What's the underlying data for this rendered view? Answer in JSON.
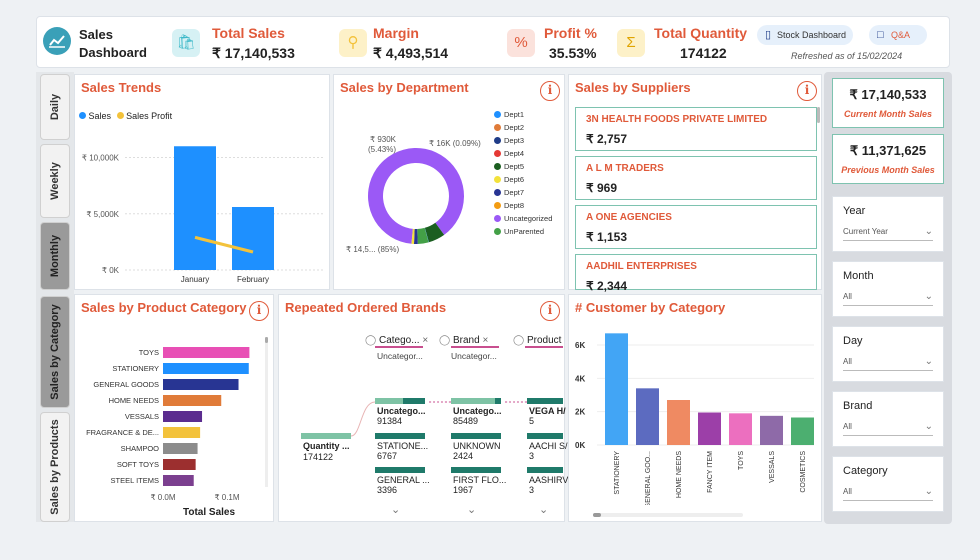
{
  "header": {
    "title_line1": "Sales",
    "title_line2": "Dashboard",
    "kpis": [
      {
        "label": "Total Sales",
        "value": "₹ 17,140,533",
        "icon": "shopping-bag-icon",
        "color": "#3cb8c8"
      },
      {
        "label": "Margin",
        "value": "₹ 4,493,514",
        "icon": "discount-tag-icon",
        "color": "#f3c23b"
      },
      {
        "label": "Profit %",
        "value": "35.53%",
        "icon": "percent-bag-icon",
        "color": "#e05a3a"
      },
      {
        "label": "Total Quantity",
        "value": "174122",
        "icon": "sigma-icon",
        "color": "#f3c23b"
      }
    ],
    "stock_button": "Stock Dashboard",
    "qa_button": "Q&A",
    "refreshed": "Refreshed as of 15/02/2024"
  },
  "side_tabs": [
    "Daily",
    "Weekly",
    "Monthly",
    "Sales by Category",
    "Sales by Products"
  ],
  "sales_trends": {
    "title": "Sales Trends",
    "legend": [
      "Sales",
      "Sales Profit"
    ],
    "legend_colors": [
      "#1e90ff",
      "#f3c23b"
    ],
    "chart_data": {
      "type": "bar",
      "categories": [
        "January",
        "February"
      ],
      "series": [
        {
          "name": "Sales",
          "values": [
            11000000,
            5600000
          ]
        },
        {
          "name": "Sales Profit",
          "values": [
            2900000,
            1600000
          ]
        }
      ],
      "ylim": [
        0,
        12000000
      ],
      "yticks": [
        "₹ 0K",
        "₹ 5,000K",
        "₹ 10,000K"
      ]
    }
  },
  "sales_by_department": {
    "title": "Sales by Department",
    "label_930k": "₹ 930K",
    "label_930k_pct": "(5.43%)",
    "label_16k": "₹ 16K (0.09%)",
    "label_main": "₹ 14,5... (85%)",
    "legend": [
      {
        "name": "Dept1",
        "color": "#1e90ff"
      },
      {
        "name": "Dept2",
        "color": "#e07b39"
      },
      {
        "name": "Dept3",
        "color": "#1f3c88"
      },
      {
        "name": "Dept4",
        "color": "#e53935"
      },
      {
        "name": "Dept5",
        "color": "#1b5e20"
      },
      {
        "name": "Dept6",
        "color": "#f3e23b"
      },
      {
        "name": "Dept7",
        "color": "#283593"
      },
      {
        "name": "Dept8",
        "color": "#f39c12"
      },
      {
        "name": "Uncategorized",
        "color": "#9b59f6"
      },
      {
        "name": "UnParented",
        "color": "#43a047"
      }
    ],
    "chart_data": {
      "type": "pie",
      "slices": [
        {
          "name": "Uncategorized",
          "value": 85
        },
        {
          "name": "Dept5",
          "value": 5.43
        },
        {
          "name": "Dept1",
          "value": 0.09
        },
        {
          "name": "UnParented",
          "value": 3.5
        },
        {
          "name": "Dept7",
          "value": 1.2
        },
        {
          "name": "Dept6",
          "value": 0.8
        }
      ]
    }
  },
  "sales_by_suppliers": {
    "title": "Sales by Suppliers",
    "items": [
      {
        "name": "3N HEALTH FOODS PRIVATE LIMITED",
        "value": "₹ 2,757"
      },
      {
        "name": "A L M TRADERS",
        "value": "₹ 969"
      },
      {
        "name": "A ONE AGENCIES",
        "value": "₹ 1,153"
      },
      {
        "name": "AADHIL ENTERPRISES",
        "value": "₹ 2,344"
      }
    ]
  },
  "right_panel": {
    "current_value": "₹ 17,140,533",
    "current_label": "Current Month Sales",
    "previous_value": "₹ 11,371,625",
    "previous_label": "Previous Month Sales",
    "slicers": [
      {
        "title": "Year",
        "value": "Current Year"
      },
      {
        "title": "Month",
        "value": "All"
      },
      {
        "title": "Day",
        "value": "All"
      },
      {
        "title": "Brand",
        "value": "All"
      },
      {
        "title": "Category",
        "value": "All"
      }
    ]
  },
  "sales_by_product_category": {
    "title": "Sales by Product Category",
    "xlabel": "Total Sales",
    "xticks": [
      "₹ 0.0M",
      "₹ 0.1M"
    ],
    "chart_data": {
      "type": "bar",
      "orientation": "horizontal",
      "categories": [
        "TOYS",
        "STATIONERY",
        "GENERAL GOODS",
        "HOME NEEDS",
        "VESSALS",
        "FRAGRANCE & DE...",
        "SHAMPOO",
        "SOFT TOYS",
        "STEEL ITEMS"
      ],
      "values": [
        0.135,
        0.134,
        0.118,
        0.091,
        0.061,
        0.058,
        0.054,
        0.051,
        0.048
      ],
      "colors": [
        "#e84fb5",
        "#1e90ff",
        "#283593",
        "#e07b39",
        "#5b2c8f",
        "#f3c23b",
        "#8c8c8c",
        "#9c2f2f",
        "#7b3f8f"
      ],
      "xlim": [
        0,
        0.15
      ]
    }
  },
  "repeated_brands": {
    "title": "Repeated Ordered Brands",
    "filters": [
      {
        "label": "Catego...",
        "sub": "Uncategor..."
      },
      {
        "label": "Brand",
        "sub": "Uncategor..."
      },
      {
        "label": "Product",
        "sub": ""
      }
    ],
    "root": {
      "label": "Quantity ...",
      "value": "174122"
    },
    "col1": [
      {
        "label": "Uncatego...",
        "value": "91384"
      },
      {
        "label": "STATIONE...",
        "value": "6767"
      },
      {
        "label": "GENERAL ...",
        "value": "3396"
      }
    ],
    "col2": [
      {
        "label": "Uncatego...",
        "value": "85489"
      },
      {
        "label": "UNKNOWN",
        "value": "2424"
      },
      {
        "label": "FIRST FLO...",
        "value": "1967"
      }
    ],
    "col3": [
      {
        "label": "VEGA H/",
        "value": "5"
      },
      {
        "label": "AACHI S/",
        "value": "3"
      },
      {
        "label": "AASHIRV",
        "value": "3"
      }
    ]
  },
  "customer_by_category": {
    "title": "# Customer by Category",
    "yticks": [
      "0K",
      "2K",
      "4K",
      "6K"
    ],
    "chart_data": {
      "type": "bar",
      "categories": [
        "STATIONERY",
        "GENERAL GOO...",
        "HOME NEEDS",
        "FANCY ITEM",
        "TOYS",
        "VESSALS",
        "COSMETICS"
      ],
      "values": [
        6700,
        3400,
        2700,
        1950,
        1900,
        1750,
        1650
      ],
      "colors": [
        "#42a5f5",
        "#5c6bc0",
        "#ef8a62",
        "#9c3fa8",
        "#ec6fbf",
        "#8e6aa8",
        "#4caf70"
      ],
      "ylim": [
        0,
        7000
      ]
    }
  }
}
